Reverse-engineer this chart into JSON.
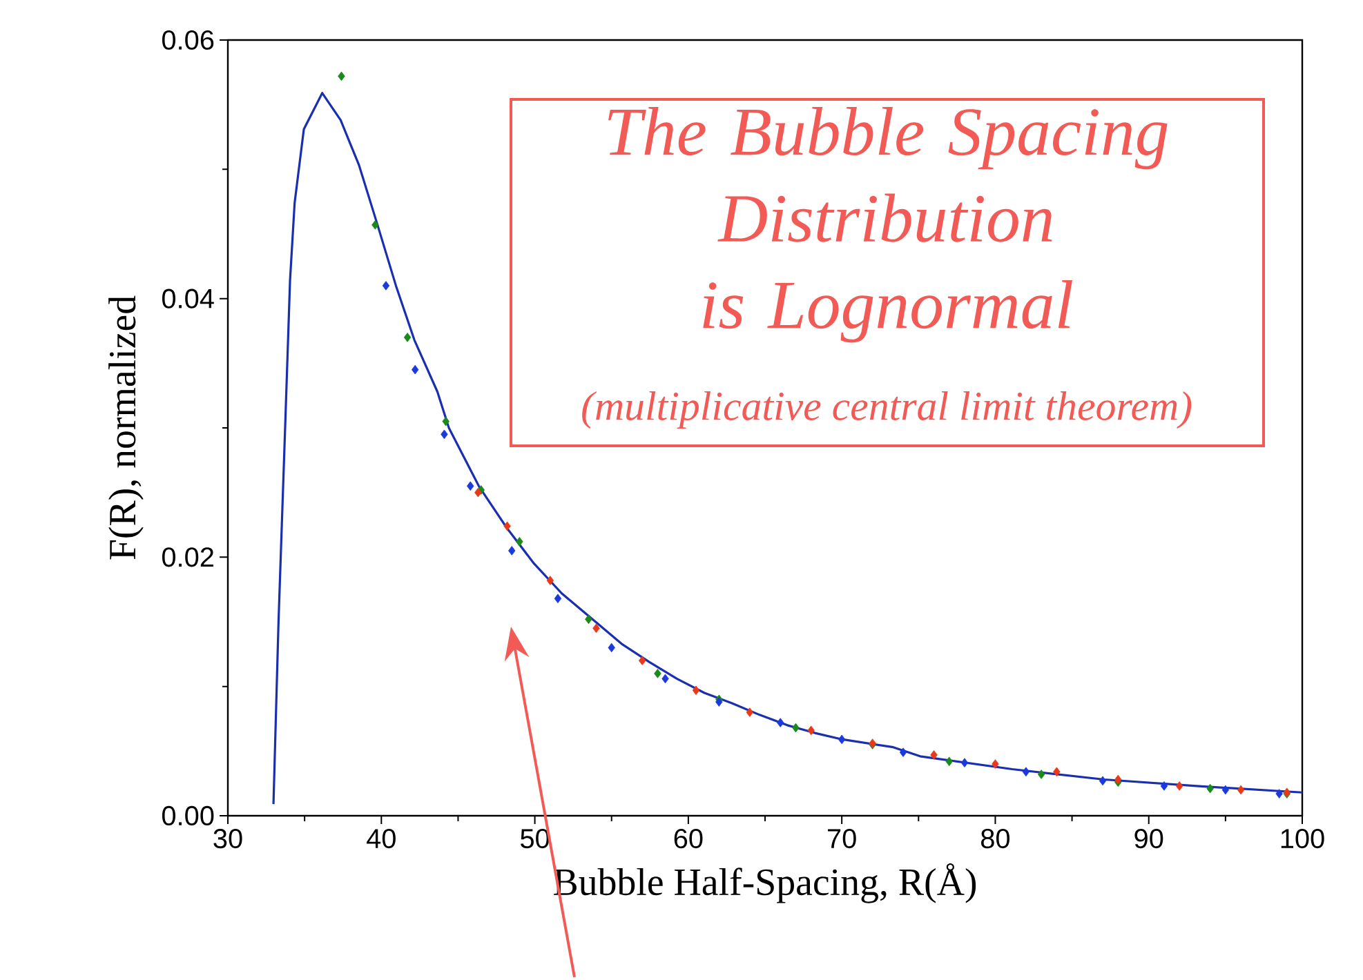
{
  "chart_data": {
    "type": "line",
    "xlabel": "Bubble Half-Spacing, R(Å)",
    "ylabel": "F(R), normalized",
    "annotations": [
      "The Bubble Spacing Distribution is Lognormal",
      "(multiplicative central limit theorem)"
    ],
    "xlim": [
      30,
      100
    ],
    "ylim": [
      0,
      0.06
    ],
    "xticks": [
      30,
      40,
      50,
      60,
      70,
      80,
      90,
      100
    ],
    "yticks": [
      {
        "value": 0,
        "label": "0.00"
      },
      {
        "value": 0.02,
        "label": "0.02"
      },
      {
        "value": 0.04,
        "label": "0.04"
      },
      {
        "value": 0.06,
        "label": "0.06"
      }
    ],
    "grid": false,
    "marker": "diamond",
    "series": [
      {
        "color": "#1a2fb0",
        "marker": "none",
        "x": [
          32.97,
          33.3,
          33.75,
          34.05,
          34.35,
          34.95,
          36.15,
          37.35,
          38.55,
          39.75,
          40.95,
          42.15,
          43.65,
          44.4,
          46.35,
          48.15,
          49.95,
          51.75,
          53.85,
          55.65,
          57.45,
          59.25,
          61.05,
          62.85,
          64.65,
          66.45,
          68.25,
          70.05,
          73.35,
          75.1,
          81.1,
          87.1,
          93.1,
          100
        ],
        "values": [
          0.0009,
          0.015,
          0.0307,
          0.0414,
          0.0474,
          0.0531,
          0.0559,
          0.0538,
          0.0503,
          0.0457,
          0.041,
          0.0368,
          0.0328,
          0.03,
          0.0255,
          0.0223,
          0.0195,
          0.0172,
          0.0151,
          0.0133,
          0.0119,
          0.0106,
          0.0095,
          0.0087,
          0.0078,
          0.007,
          0.0064,
          0.0059,
          0.0053,
          0.0046,
          0.0036,
          0.0028,
          0.0023,
          0.0018
        ]
      },
      {
        "type": "scatter",
        "color": "#1a8a1a",
        "x": [
          37.4,
          39.6,
          41.7,
          44.2,
          46.5,
          49,
          53.5,
          58,
          62,
          67,
          72,
          77,
          83,
          88,
          94,
          99
        ],
        "values": [
          0.0572,
          0.0457,
          0.037,
          0.0305,
          0.0252,
          0.0212,
          0.0152,
          0.011,
          0.009,
          0.0068,
          0.0055,
          0.0042,
          0.0032,
          0.0026,
          0.0021,
          0.0017
        ]
      },
      {
        "type": "scatter",
        "color": "#e83a1a",
        "x": [
          46.3,
          48.2,
          51,
          54,
          57,
          60.5,
          64,
          68,
          72,
          76,
          80,
          84,
          88,
          92,
          96,
          99
        ],
        "values": [
          0.025,
          0.0224,
          0.0182,
          0.0145,
          0.012,
          0.0097,
          0.008,
          0.0066,
          0.0056,
          0.0047,
          0.004,
          0.0034,
          0.0028,
          0.0023,
          0.002,
          0.0018
        ]
      },
      {
        "type": "scatter",
        "color": "#1a3ae0",
        "x": [
          40.3,
          42.2,
          44.1,
          45.8,
          48.5,
          51.5,
          55,
          58.5,
          62,
          66,
          70,
          74,
          78,
          82,
          87,
          91,
          95,
          98.5
        ],
        "values": [
          0.041,
          0.0345,
          0.0295,
          0.0255,
          0.0205,
          0.0168,
          0.013,
          0.0106,
          0.0088,
          0.0072,
          0.0059,
          0.0049,
          0.0041,
          0.0034,
          0.0027,
          0.0023,
          0.002,
          0.0017
        ]
      }
    ]
  }
}
